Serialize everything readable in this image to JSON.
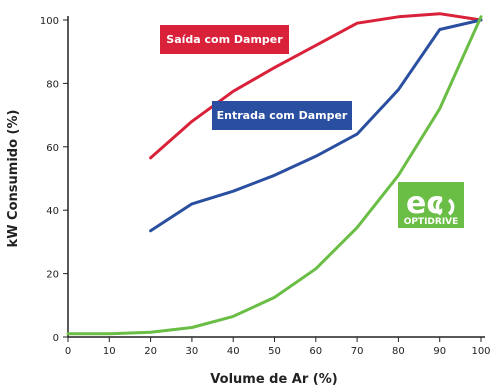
{
  "chart_data": {
    "type": "line",
    "xlabel": "Volume de Ar (%)",
    "ylabel": "kW Consumido (%)",
    "xlim": [
      0,
      100
    ],
    "ylim": [
      0,
      100
    ],
    "xticks": [
      0,
      10,
      20,
      30,
      40,
      50,
      60,
      70,
      80,
      90,
      100
    ],
    "yticks": [
      0,
      20,
      40,
      60,
      80,
      100
    ],
    "grid": false,
    "series": [
      {
        "name": "Saída com Damper",
        "color": "#d9213a",
        "x": [
          20,
          30,
          40,
          50,
          60,
          70,
          80,
          90,
          100
        ],
        "y": [
          56.5,
          68,
          77.5,
          85,
          92,
          99,
          101,
          102,
          100
        ]
      },
      {
        "name": "Entrada com Damper",
        "color": "#2b4fa0",
        "x": [
          20,
          30,
          40,
          50,
          60,
          70,
          80,
          90,
          100
        ],
        "y": [
          33.5,
          42,
          46,
          51,
          57,
          64,
          78,
          97,
          100
        ]
      },
      {
        "name": "ECO OPTIDRIVE",
        "color": "#6abd45",
        "x": [
          0,
          10,
          20,
          30,
          40,
          50,
          60,
          70,
          80,
          90,
          100
        ],
        "y": [
          1,
          1,
          1.5,
          3,
          6.5,
          12.5,
          21.5,
          34.5,
          51,
          72,
          101
        ]
      }
    ],
    "annotations": {
      "saida_label": "Saída com Damper",
      "entrada_label": "Entrada com Damper",
      "logo_main": "ec",
      "logo_sub": "OPTIDRIVE"
    }
  }
}
